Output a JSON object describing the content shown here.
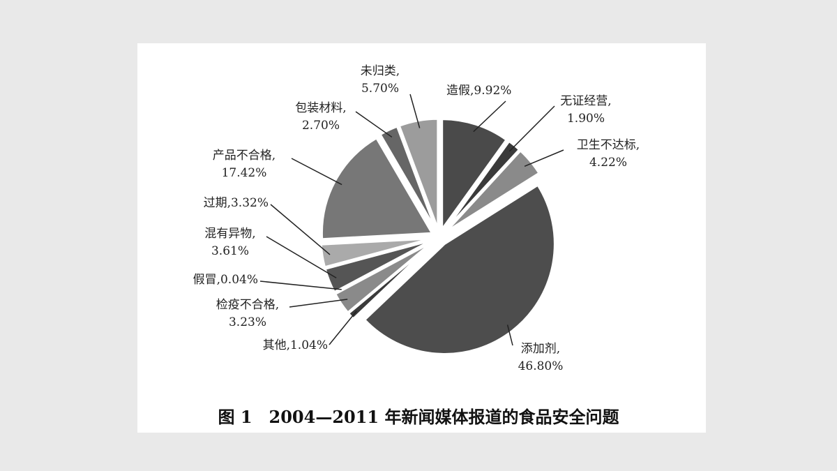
{
  "chart_data": {
    "type": "pie",
    "title": "图 1　2004—2011 年新闻媒体报道的食品安全问题",
    "categories": [
      "造假,",
      "无证经营,",
      "卫生不达标,",
      "添加剂,",
      "其他,",
      "检疫不合格,",
      "假冒,",
      "混有异物,",
      "过期,",
      "产品不合格,",
      "包装材料,",
      "未归类,"
    ],
    "values": [
      9.92,
      1.9,
      4.22,
      46.8,
      1.04,
      3.23,
      0.04,
      3.61,
      3.32,
      17.42,
      2.7,
      5.7
    ],
    "value_labels": [
      "9.92%",
      "1.90%",
      "4.22%",
      "46.80%",
      "1.04%",
      "3.23%",
      "0.04%",
      "3.61%",
      "3.32%",
      "17.42%",
      "2.70%",
      "5.70%"
    ],
    "colors": [
      "#4a4a4a",
      "#3a3a3a",
      "#8a8a8a",
      "#4d4d4d",
      "#3a3a3a",
      "#8a8a8a",
      "#333333",
      "#555555",
      "#aaaaaa",
      "#777777",
      "#666666",
      "#9c9c9c"
    ]
  }
}
